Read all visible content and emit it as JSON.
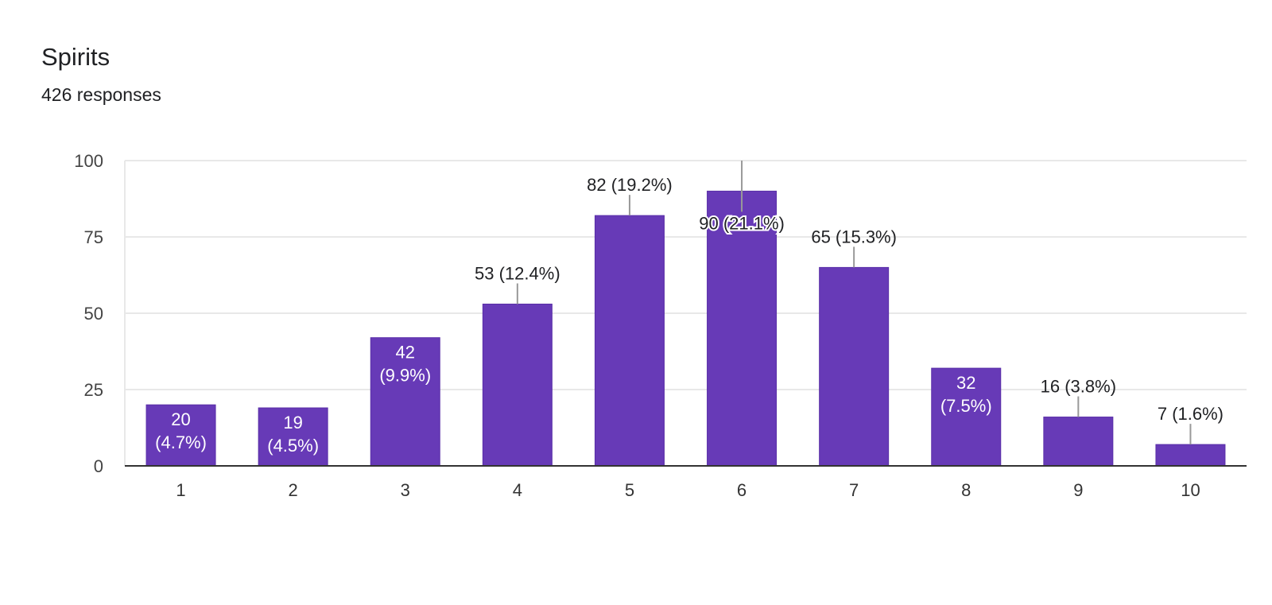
{
  "card": {
    "title": "Spirits",
    "subtitle": "426 responses"
  },
  "colors": {
    "bar": "#673ab7",
    "bar_edge": "#5a2fa8",
    "grid": "#e8e8e8",
    "axis": "#333333",
    "label_outside": "#202124",
    "label_inside": "#ffffff",
    "tick_text": "#444444",
    "leader": "#999999"
  },
  "chart_data": {
    "type": "bar",
    "title": "Spirits",
    "xlabel": "",
    "ylabel": "",
    "categories": [
      "1",
      "2",
      "3",
      "4",
      "5",
      "6",
      "7",
      "8",
      "9",
      "10"
    ],
    "values": [
      20,
      19,
      42,
      53,
      82,
      90,
      65,
      32,
      16,
      7
    ],
    "percents": [
      "4.7%",
      "4.5%",
      "9.9%",
      "12.4%",
      "19.2%",
      "21.1%",
      "15.3%",
      "7.5%",
      "3.8%",
      "1.6%"
    ],
    "label_inside": [
      true,
      true,
      true,
      false,
      false,
      false,
      false,
      true,
      false,
      false
    ],
    "ylim": [
      0,
      100
    ],
    "yticks": [
      0,
      25,
      50,
      75,
      100
    ],
    "grid": true,
    "legend": "none"
  }
}
